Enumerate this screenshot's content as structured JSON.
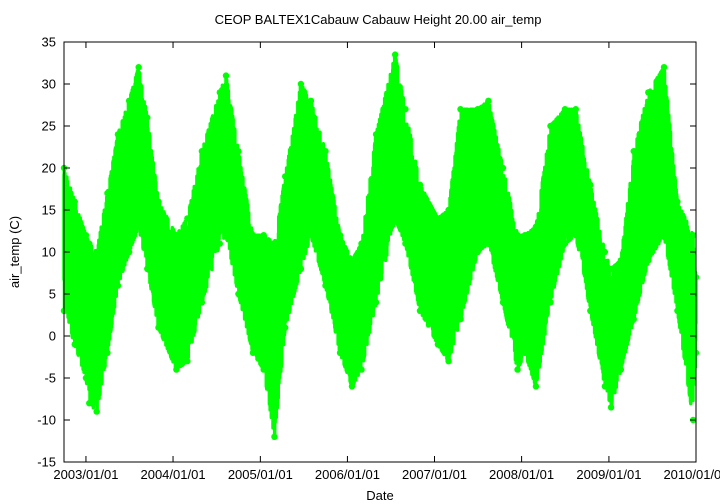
{
  "chart_data": {
    "type": "scatter",
    "title": "CEOP BALTEX1Cabauw Cabauw Height 20.00 air_temp",
    "xlabel": "Date",
    "ylabel": "air_temp (C)",
    "xlim": [
      "2002-10-01",
      "2010-01-01"
    ],
    "ylim": [
      -15,
      35
    ],
    "x_ticks": [
      "2003/01/01",
      "2004/01/01",
      "2005/01/01",
      "2006/01/01",
      "2007/01/01",
      "2008/01/01",
      "2009/01/01",
      "2010/01/01"
    ],
    "y_ticks": [
      -15,
      -10,
      -5,
      0,
      5,
      10,
      15,
      20,
      25,
      30,
      35
    ],
    "grid": false,
    "legend": "none",
    "marker_color": "#00ff00",
    "series": [
      {
        "values_label": "air_temp",
        "points": [
          {
            "x": "2002-10-01",
            "low": 3,
            "high": 20
          },
          {
            "x": "2002-11-15",
            "low": -1,
            "high": 16
          },
          {
            "x": "2003-01-01",
            "low": -5,
            "high": 12
          },
          {
            "x": "2003-01-15",
            "low": -8,
            "high": 11
          },
          {
            "x": "2003-02-15",
            "low": -9,
            "high": 10
          },
          {
            "x": "2003-04-01",
            "low": -2,
            "high": 17
          },
          {
            "x": "2003-05-15",
            "low": 6,
            "high": 24
          },
          {
            "x": "2003-07-01",
            "low": 10,
            "high": 28
          },
          {
            "x": "2003-08-10",
            "low": 13,
            "high": 32
          },
          {
            "x": "2003-09-15",
            "low": 8,
            "high": 26
          },
          {
            "x": "2003-11-01",
            "low": 1,
            "high": 16
          },
          {
            "x": "2004-01-15",
            "low": -4,
            "high": 12
          },
          {
            "x": "2004-03-01",
            "low": -3,
            "high": 14
          },
          {
            "x": "2004-05-01",
            "low": 4,
            "high": 22
          },
          {
            "x": "2004-07-15",
            "low": 11,
            "high": 29
          },
          {
            "x": "2004-08-10",
            "low": 12,
            "high": 31
          },
          {
            "x": "2004-10-01",
            "low": 5,
            "high": 22
          },
          {
            "x": "2004-12-01",
            "low": -2,
            "high": 12
          },
          {
            "x": "2005-01-15",
            "low": -4,
            "high": 12
          },
          {
            "x": "2005-03-01",
            "low": -12,
            "high": 11
          },
          {
            "x": "2005-04-15",
            "low": 1,
            "high": 19
          },
          {
            "x": "2005-06-20",
            "low": 8,
            "high": 30
          },
          {
            "x": "2005-08-01",
            "low": 12,
            "high": 28
          },
          {
            "x": "2005-10-01",
            "low": 6,
            "high": 22
          },
          {
            "x": "2005-12-01",
            "low": -2,
            "high": 12
          },
          {
            "x": "2006-01-20",
            "low": -6,
            "high": 9
          },
          {
            "x": "2006-03-01",
            "low": -4,
            "high": 11
          },
          {
            "x": "2006-05-01",
            "low": 4,
            "high": 24
          },
          {
            "x": "2006-07-20",
            "low": 14,
            "high": 33.5
          },
          {
            "x": "2006-09-01",
            "low": 11,
            "high": 27
          },
          {
            "x": "2006-11-01",
            "low": 3,
            "high": 18
          },
          {
            "x": "2007-01-15",
            "low": -1,
            "high": 14
          },
          {
            "x": "2007-03-01",
            "low": -3,
            "high": 15
          },
          {
            "x": "2007-04-20",
            "low": 2,
            "high": 27
          },
          {
            "x": "2007-07-01",
            "low": 10,
            "high": 27
          },
          {
            "x": "2007-08-15",
            "low": 11,
            "high": 28
          },
          {
            "x": "2007-10-15",
            "low": 4,
            "high": 20
          },
          {
            "x": "2007-12-15",
            "low": -4,
            "high": 12
          },
          {
            "x": "2008-01-15",
            "low": -2,
            "high": 12
          },
          {
            "x": "2008-03-01",
            "low": -6,
            "high": 13
          },
          {
            "x": "2008-05-01",
            "low": 4,
            "high": 25
          },
          {
            "x": "2008-07-01",
            "low": 11,
            "high": 27
          },
          {
            "x": "2008-08-15",
            "low": 12,
            "high": 27
          },
          {
            "x": "2008-10-15",
            "low": 3,
            "high": 18
          },
          {
            "x": "2008-12-15",
            "low": -6,
            "high": 10
          },
          {
            "x": "2009-01-10",
            "low": -8.5,
            "high": 8
          },
          {
            "x": "2009-02-20",
            "low": -4,
            "high": 9
          },
          {
            "x": "2009-04-15",
            "low": 2,
            "high": 22
          },
          {
            "x": "2009-06-15",
            "low": 9,
            "high": 29
          },
          {
            "x": "2009-08-20",
            "low": 12,
            "high": 32
          },
          {
            "x": "2009-10-15",
            "low": 3,
            "high": 16
          },
          {
            "x": "2009-12-20",
            "low": -10,
            "high": 12
          },
          {
            "x": "2010-01-01",
            "low": -2,
            "high": 7
          }
        ]
      }
    ]
  }
}
